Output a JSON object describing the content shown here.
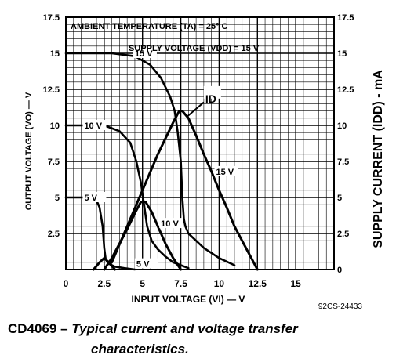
{
  "chart_data": {
    "type": "line",
    "notes": {
      "ambient": "AMBIENT TEMPERATURE (TA) = 25° C",
      "supply": "SUPPLY VOLTAGE (VDD) = 15 V",
      "id_label": "ID",
      "figure_code": "92CS-24433"
    },
    "xlabel": "INPUT VOLTAGE (VI) — V",
    "ylabel_left": "OUTPUT VOLTAGE (VO) — V",
    "ylabel_right": "SUPPLY CURRENT (IDD) - mA",
    "xlim": [
      0,
      17.5
    ],
    "ylim": [
      0,
      17.5
    ],
    "x_ticks": [
      "0",
      "2.5",
      "5",
      "7.5",
      "10",
      "12.5",
      "15"
    ],
    "y_ticks_left": [
      "2.5",
      "5",
      "7.5",
      "10",
      "12.5",
      "15",
      "17.5"
    ],
    "y_ticks_right": [
      "0",
      "2.5",
      "5",
      "7.5",
      "10",
      "12.5",
      "15",
      "17.5"
    ],
    "grid": true,
    "series": [
      {
        "name": "15 V",
        "group": "output_voltage",
        "label_pos": [
          4.5,
          15
        ],
        "x": [
          0,
          3,
          4.5,
          5.5,
          6.2,
          6.8,
          7.1,
          7.3,
          7.5,
          7.6,
          7.7,
          7.8,
          8,
          8.5,
          9,
          10,
          11
        ],
        "y": [
          15,
          15,
          14.8,
          14.2,
          13.3,
          12,
          11,
          9.5,
          7.5,
          5,
          3.5,
          3,
          2.5,
          2,
          1.5,
          0.8,
          0.3
        ]
      },
      {
        "name": "10 V",
        "group": "output_voltage",
        "label_pos": [
          1.2,
          10
        ],
        "x": [
          0,
          2.5,
          3.5,
          4.2,
          4.6,
          4.9,
          5.1,
          5.3,
          5.6,
          6,
          6.5,
          7,
          7.5,
          8
        ],
        "y": [
          10,
          10,
          9.6,
          8.8,
          7.5,
          6,
          4.5,
          3,
          2,
          1.4,
          0.9,
          0.5,
          0.3,
          0.1
        ]
      },
      {
        "name": "5 V",
        "group": "output_voltage",
        "label_pos": [
          1.2,
          5
        ],
        "x": [
          0,
          1.6,
          2,
          2.2,
          2.4,
          2.5,
          2.6,
          2.8,
          3.2,
          3.8,
          4.5
        ],
        "y": [
          5,
          5,
          4.8,
          4.3,
          3,
          1.5,
          0.7,
          0.4,
          0.2,
          0.1,
          0
        ]
      },
      {
        "name": "15 V",
        "group": "supply_current",
        "label_pos": [
          9.8,
          6.8
        ],
        "x": [
          3,
          4,
          5,
          6,
          7,
          7.4,
          7.6,
          8,
          8.5,
          9,
          9.5,
          10,
          10.5,
          11,
          11.5,
          12,
          12.5
        ],
        "y": [
          0.5,
          3,
          5.5,
          8,
          10.2,
          11,
          11,
          10.5,
          9.3,
          8,
          6.8,
          5.5,
          4.3,
          3,
          2,
          1,
          0
        ]
      },
      {
        "name": "10 V",
        "group": "supply_current",
        "label_pos": [
          6.2,
          3.2
        ],
        "x": [
          2.5,
          3,
          3.5,
          4,
          4.5,
          4.9,
          5.2,
          5.6,
          6,
          6.5,
          7,
          7.5
        ],
        "y": [
          0,
          0.8,
          1.8,
          2.8,
          3.9,
          4.7,
          4.7,
          4,
          3,
          1.8,
          0.8,
          0
        ]
      },
      {
        "name": "5 V",
        "group": "supply_current",
        "label_pos": [
          4.6,
          0.4
        ],
        "x": [
          1.8,
          2.2,
          2.5,
          2.8,
          3.2
        ],
        "y": [
          0,
          0.5,
          0.8,
          0.5,
          0
        ]
      }
    ]
  },
  "caption": {
    "part": "CD4069",
    "dash": "–",
    "text1": "Typical current and voltage transfer",
    "text2": "characteristics."
  }
}
